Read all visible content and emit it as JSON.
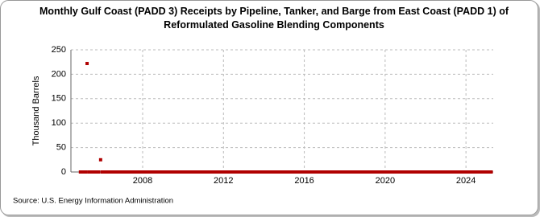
{
  "chart_data": {
    "type": "scatter",
    "title": "Monthly Gulf Coast (PADD 3) Receipts by Pipeline, Tanker, and Barge from East Coast (PADD 1) of Reformulated Gasoline Blending Components",
    "y_label": "Thousand Barrels",
    "source": "Source: U.S. Energy Information Administration",
    "color": "#b00000",
    "grid": true,
    "xlim": [
      2004.45,
      2025.35
    ],
    "ylim": [
      0,
      250
    ],
    "xticks": [
      2008,
      2012,
      2016,
      2020,
      2024
    ],
    "yticks": [
      0,
      50,
      100,
      150,
      200,
      250
    ],
    "x": [
      2004.92,
      2005.0,
      2005.08,
      2005.17,
      2005.25,
      2005.33,
      2005.42,
      2005.5,
      2005.58,
      2005.67,
      2005.75,
      2005.83,
      2005.92,
      2006.0,
      2006.08,
      2006.17,
      2006.25,
      2006.33,
      2006.42,
      2006.5,
      2006.58,
      2006.67,
      2006.75,
      2006.83,
      2006.92,
      2007.0,
      2007.08,
      2007.17,
      2007.25,
      2007.33,
      2007.42,
      2007.5,
      2007.58,
      2007.67,
      2007.75,
      2007.83,
      2007.92,
      2008.0,
      2008.08,
      2008.17,
      2008.25,
      2008.33,
      2008.42,
      2008.5,
      2008.58,
      2008.67,
      2008.75,
      2008.83,
      2008.92,
      2009.0,
      2009.08,
      2009.17,
      2009.25,
      2009.33,
      2009.42,
      2009.5,
      2009.58,
      2009.67,
      2009.75,
      2009.83,
      2009.92,
      2010.0,
      2010.08,
      2010.17,
      2010.25,
      2010.33,
      2010.42,
      2010.5,
      2010.58,
      2010.67,
      2010.75,
      2010.83,
      2010.92,
      2011.0,
      2011.08,
      2011.17,
      2011.25,
      2011.33,
      2011.42,
      2011.5,
      2011.58,
      2011.67,
      2011.75,
      2011.83,
      2011.92,
      2012.0,
      2012.08,
      2012.17,
      2012.25,
      2012.33,
      2012.42,
      2012.5,
      2012.58,
      2012.67,
      2012.75,
      2012.83,
      2012.92,
      2013.0,
      2013.08,
      2013.17,
      2013.25,
      2013.33,
      2013.42,
      2013.5,
      2013.58,
      2013.67,
      2013.75,
      2013.83,
      2013.92,
      2014.0,
      2014.08,
      2014.17,
      2014.25,
      2014.33,
      2014.42,
      2014.5,
      2014.58,
      2014.67,
      2014.75,
      2014.83,
      2014.92,
      2015.0,
      2015.08,
      2015.17,
      2015.25,
      2015.33,
      2015.42,
      2015.5,
      2015.58,
      2015.67,
      2015.75,
      2015.83,
      2015.92,
      2016.0,
      2016.08,
      2016.17,
      2016.25,
      2016.33,
      2016.42,
      2016.5,
      2016.58,
      2016.67,
      2016.75,
      2016.83,
      2016.92,
      2017.0,
      2017.08,
      2017.17,
      2017.25,
      2017.33,
      2017.42,
      2017.5,
      2017.58,
      2017.67,
      2017.75,
      2017.83,
      2017.92,
      2018.0,
      2018.08,
      2018.17,
      2018.25,
      2018.33,
      2018.42,
      2018.5,
      2018.58,
      2018.67,
      2018.75,
      2018.83,
      2018.92,
      2019.0,
      2019.08,
      2019.17,
      2019.25,
      2019.33,
      2019.42,
      2019.5,
      2019.58,
      2019.67,
      2019.75,
      2019.83,
      2019.92,
      2020.0,
      2020.08,
      2020.17,
      2020.25,
      2020.33,
      2020.42,
      2020.5,
      2020.58,
      2020.67,
      2020.75,
      2020.83,
      2020.92,
      2021.0,
      2021.08,
      2021.17,
      2021.25,
      2021.33,
      2021.42,
      2021.5,
      2021.58,
      2021.67,
      2021.75,
      2021.83,
      2021.92,
      2022.0,
      2022.08,
      2022.17,
      2022.25,
      2022.33,
      2022.42,
      2022.5,
      2022.58,
      2022.67,
      2022.75,
      2022.83,
      2022.92,
      2023.0,
      2023.08,
      2023.17,
      2023.25,
      2023.33,
      2023.42,
      2023.5,
      2023.58,
      2023.67,
      2023.75,
      2023.83,
      2023.92,
      2024.0,
      2024.08,
      2024.17,
      2024.25,
      2024.33,
      2024.42,
      2024.5,
      2024.58,
      2024.67,
      2024.75,
      2024.83,
      2024.92,
      2025.0,
      2025.08,
      2025.17,
      2025.25
    ],
    "values": [
      0,
      0,
      0,
      0,
      222,
      0,
      0,
      0,
      0,
      0,
      0,
      0,
      25,
      0,
      0,
      0,
      0,
      0,
      0,
      0,
      0,
      0,
      0,
      0,
      0,
      0,
      0,
      0,
      0,
      0,
      0,
      0,
      0,
      0,
      0,
      0,
      0,
      0,
      0,
      0,
      0,
      0,
      0,
      0,
      0,
      0,
      0,
      0,
      0,
      0,
      0,
      0,
      0,
      0,
      0,
      0,
      0,
      0,
      0,
      0,
      0,
      0,
      0,
      0,
      0,
      0,
      0,
      0,
      0,
      0,
      0,
      0,
      0,
      0,
      0,
      0,
      0,
      0,
      0,
      0,
      0,
      0,
      0,
      0,
      0,
      0,
      0,
      0,
      0,
      0,
      0,
      0,
      0,
      0,
      0,
      0,
      0,
      0,
      0,
      0,
      0,
      0,
      0,
      0,
      0,
      0,
      0,
      0,
      0,
      0,
      0,
      0,
      0,
      0,
      0,
      0,
      0,
      0,
      0,
      0,
      0,
      0,
      0,
      0,
      0,
      0,
      0,
      0,
      0,
      0,
      0,
      0,
      0,
      0,
      0,
      0,
      0,
      0,
      0,
      0,
      0,
      0,
      0,
      0,
      0,
      0,
      0,
      0,
      0,
      0,
      0,
      0,
      0,
      0,
      0,
      0,
      0,
      0,
      0,
      0,
      0,
      0,
      0,
      0,
      0,
      0,
      0,
      0,
      0,
      0,
      0,
      0,
      0,
      0,
      0,
      0,
      0,
      0,
      0,
      0,
      0,
      0,
      0,
      0,
      0,
      0,
      0,
      0,
      0,
      0,
      0,
      0,
      0,
      0,
      0,
      0,
      0,
      0,
      0,
      0,
      0,
      0,
      0,
      0,
      0,
      0,
      0,
      0,
      0,
      0,
      0,
      0,
      0,
      0,
      0,
      0,
      0,
      0,
      0,
      0,
      0,
      0,
      0,
      0,
      0,
      0,
      0,
      0,
      0,
      0,
      0,
      0,
      0,
      0,
      0,
      0,
      0,
      0,
      0,
      0,
      0,
      0,
      0,
      0,
      0
    ]
  }
}
